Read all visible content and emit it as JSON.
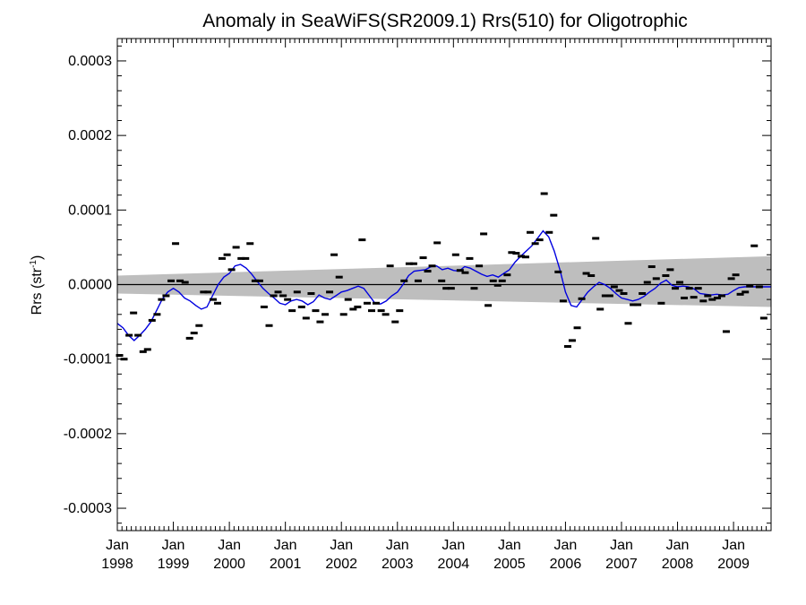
{
  "chart_data": {
    "type": "scatter",
    "title": "Anomaly in SeaWiFS(SR2009.1) Rrs(510) for Oligotrophic",
    "xlabel": "",
    "ylabel_main": "Rrs (str",
    "ylabel_sup": "-1",
    "ylabel_close": ")",
    "xlim": [
      1998.0,
      2009.67
    ],
    "ylim": [
      -0.00033,
      0.00033
    ],
    "yticks": [
      {
        "value": 0.0003,
        "label": "0.0003"
      },
      {
        "value": 0.0002,
        "label": "0.0002"
      },
      {
        "value": 0.0001,
        "label": "0.0001"
      },
      {
        "value": 0.0,
        "label": "0.0000"
      },
      {
        "value": -0.0001,
        "label": "-0.0001"
      },
      {
        "value": -0.0002,
        "label": "-0.0002"
      },
      {
        "value": -0.0003,
        "label": "-0.0003"
      }
    ],
    "xticks": [
      {
        "value": 1998,
        "month": "Jan",
        "year": "1998"
      },
      {
        "value": 1999,
        "month": "Jan",
        "year": "1999"
      },
      {
        "value": 2000,
        "month": "Jan",
        "year": "2000"
      },
      {
        "value": 2001,
        "month": "Jan",
        "year": "2001"
      },
      {
        "value": 2002,
        "month": "Jan",
        "year": "2002"
      },
      {
        "value": 2003,
        "month": "Jan",
        "year": "2003"
      },
      {
        "value": 2004,
        "month": "Jan",
        "year": "2004"
      },
      {
        "value": 2005,
        "month": "Jan",
        "year": "2005"
      },
      {
        "value": 2006,
        "month": "Jan",
        "year": "2006"
      },
      {
        "value": 2007,
        "month": "Jan",
        "year": "2007"
      },
      {
        "value": 2008,
        "month": "Jan",
        "year": "2008"
      },
      {
        "value": 2009,
        "month": "Jan",
        "year": "2009"
      }
    ],
    "zero_line": 0.0,
    "trend_band": {
      "x": [
        1998.0,
        2009.67
      ],
      "upper": [
        1.2e-05,
        3.8e-05
      ],
      "lower": [
        -1.2e-05,
        -3e-05
      ]
    },
    "anomaly_points": {
      "x": [
        1998.04,
        1998.12,
        1998.21,
        1998.29,
        1998.37,
        1998.46,
        1998.54,
        1998.62,
        1998.71,
        1998.79,
        1998.87,
        1998.96,
        1999.04,
        1999.12,
        1999.21,
        1999.29,
        1999.37,
        1999.46,
        1999.54,
        1999.62,
        1999.71,
        1999.79,
        1999.87,
        1999.96,
        2000.04,
        2000.12,
        2000.21,
        2000.29,
        2000.37,
        2000.46,
        2000.54,
        2000.62,
        2000.71,
        2000.79,
        2000.87,
        2000.96,
        2001.04,
        2001.12,
        2001.21,
        2001.29,
        2001.37,
        2001.46,
        2001.54,
        2001.62,
        2001.71,
        2001.79,
        2001.87,
        2001.96,
        2002.04,
        2002.12,
        2002.21,
        2002.29,
        2002.37,
        2002.46,
        2002.54,
        2002.62,
        2002.71,
        2002.79,
        2002.87,
        2002.96,
        2003.04,
        2003.12,
        2003.21,
        2003.29,
        2003.37,
        2003.46,
        2003.54,
        2003.62,
        2003.71,
        2003.79,
        2003.87,
        2003.96,
        2004.04,
        2004.12,
        2004.21,
        2004.29,
        2004.37,
        2004.46,
        2004.54,
        2004.62,
        2004.71,
        2004.79,
        2004.87,
        2004.96,
        2005.04,
        2005.12,
        2005.21,
        2005.29,
        2005.37,
        2005.46,
        2005.54,
        2005.62,
        2005.71,
        2005.79,
        2005.87,
        2005.96,
        2006.04,
        2006.12,
        2006.21,
        2006.29,
        2006.37,
        2006.46,
        2006.54,
        2006.62,
        2006.71,
        2006.79,
        2006.87,
        2006.96,
        2007.04,
        2007.12,
        2007.21,
        2007.29,
        2007.37,
        2007.46,
        2007.54,
        2007.62,
        2007.71,
        2007.79,
        2007.87,
        2007.96,
        2008.04,
        2008.12,
        2008.21,
        2008.29,
        2008.37,
        2008.46,
        2008.54,
        2008.62,
        2008.71,
        2008.79,
        2008.87,
        2008.96,
        2009.04,
        2009.12,
        2009.21,
        2009.29,
        2009.37,
        2009.46,
        2009.54
      ],
      "y": [
        -9.5e-05,
        -0.0001,
        -6.8e-05,
        -3.8e-05,
        -6.8e-05,
        -9e-05,
        -8.7e-05,
        -4.8e-05,
        -4e-05,
        -2e-05,
        -1.5e-05,
        5e-06,
        5.5e-05,
        5e-06,
        3e-06,
        -7.2e-05,
        -6.5e-05,
        -5.5e-05,
        -1e-05,
        -1e-05,
        -2e-05,
        -2.5e-05,
        3.5e-05,
        4e-05,
        2e-05,
        5e-05,
        3.5e-05,
        3.5e-05,
        5.5e-05,
        5e-06,
        5e-06,
        -3e-05,
        -5.5e-05,
        -1.5e-05,
        -1e-05,
        -1.5e-05,
        -2e-05,
        -3.5e-05,
        -1e-05,
        -3e-05,
        -4.5e-05,
        -1.2e-05,
        -3.5e-05,
        -5e-05,
        -4e-05,
        -1e-05,
        4e-05,
        1e-05,
        -4e-05,
        -2e-05,
        -3.3e-05,
        -3e-05,
        6e-05,
        -2.5e-05,
        -3.5e-05,
        -2.5e-05,
        -3.5e-05,
        -4e-05,
        2.5e-05,
        -5e-05,
        -3.5e-05,
        5e-06,
        2.8e-05,
        2.8e-05,
        5e-06,
        3.6e-05,
        1.8e-05,
        2.5e-05,
        5.6e-05,
        5e-06,
        -5e-06,
        -5e-06,
        4e-05,
        1.9e-05,
        1.6e-05,
        3.5e-05,
        -5e-06,
        2.5e-05,
        6.8e-05,
        -2.8e-05,
        5e-06,
        -1e-06,
        5e-06,
        1.3e-05,
        4.3e-05,
        4.2e-05,
        3.8e-05,
        3.7e-05,
        7e-05,
        5.5e-05,
        6e-05,
        0.000122,
        7e-05,
        9.3e-05,
        1.7e-05,
        -2.2e-05,
        -8.3e-05,
        -7.5e-05,
        -5.8e-05,
        -1.9e-05,
        1.5e-05,
        1.2e-05,
        6.2e-05,
        -3.3e-05,
        -1.5e-05,
        -1.5e-05,
        -3e-06,
        -8e-06,
        -1.2e-05,
        -5.2e-05,
        -2.7e-05,
        -2.7e-05,
        -1.2e-05,
        3e-06,
        2.4e-05,
        8e-06,
        -2.5e-05,
        1.2e-05,
        2e-05,
        -5e-06,
        3e-06,
        -1.8e-05,
        -5e-06,
        -1.7e-05,
        -5e-06,
        -2.2e-05,
        -1.5e-05,
        -2e-05,
        -1.8e-05,
        -1.5e-05,
        -6.3e-05,
        8e-06,
        1.3e-05,
        -1.3e-05,
        -1e-05,
        -2e-06,
        5.2e-05,
        -3e-06,
        -4.5e-05
      ]
    },
    "smoothed_line": {
      "x": [
        1998.0,
        1998.1,
        1998.2,
        1998.3,
        1998.4,
        1998.5,
        1998.6,
        1998.7,
        1998.8,
        1998.9,
        1999.0,
        1999.1,
        1999.2,
        1999.3,
        1999.4,
        1999.5,
        1999.6,
        1999.7,
        1999.8,
        1999.9,
        2000.0,
        2000.1,
        2000.2,
        2000.3,
        2000.4,
        2000.5,
        2000.6,
        2000.7,
        2000.8,
        2000.9,
        2001.0,
        2001.1,
        2001.2,
        2001.3,
        2001.4,
        2001.5,
        2001.6,
        2001.7,
        2001.8,
        2001.9,
        2002.0,
        2002.1,
        2002.2,
        2002.3,
        2002.4,
        2002.5,
        2002.6,
        2002.7,
        2002.8,
        2002.9,
        2003.0,
        2003.1,
        2003.2,
        2003.3,
        2003.4,
        2003.5,
        2003.6,
        2003.7,
        2003.8,
        2003.9,
        2004.0,
        2004.1,
        2004.2,
        2004.3,
        2004.4,
        2004.5,
        2004.6,
        2004.7,
        2004.8,
        2004.9,
        2005.0,
        2005.1,
        2005.2,
        2005.3,
        2005.4,
        2005.5,
        2005.6,
        2005.7,
        2005.8,
        2005.9,
        2006.0,
        2006.1,
        2006.2,
        2006.3,
        2006.4,
        2006.5,
        2006.6,
        2006.7,
        2006.8,
        2006.9,
        2007.0,
        2007.1,
        2007.2,
        2007.3,
        2007.4,
        2007.5,
        2007.6,
        2007.7,
        2007.8,
        2007.9,
        2008.0,
        2008.1,
        2008.2,
        2008.3,
        2008.4,
        2008.5,
        2008.6,
        2008.7,
        2008.8,
        2008.9,
        2009.0,
        2009.1,
        2009.2,
        2009.3,
        2009.4,
        2009.5,
        2009.6,
        2009.67
      ],
      "y": [
        -5.2e-05,
        -5.8e-05,
        -6.8e-05,
        -7.5e-05,
        -6.8e-05,
        -6e-05,
        -5e-05,
        -3.5e-05,
        -2e-05,
        -1e-05,
        -5e-06,
        -1e-05,
        -1.8e-05,
        -2.2e-05,
        -2.8e-05,
        -3.3e-05,
        -3e-05,
        -1.5e-05,
        0.0,
        1e-05,
        1.5e-05,
        2.5e-05,
        2.7e-05,
        2.2e-05,
        1.4e-05,
        4e-06,
        -5e-06,
        -1.2e-05,
        -1.8e-05,
        -2.5e-05,
        -2.7e-05,
        -2.2e-05,
        -2e-05,
        -2.2e-05,
        -2.7e-05,
        -2.3e-05,
        -1.4e-05,
        -1.8e-05,
        -2e-05,
        -1.5e-05,
        -1e-05,
        -8e-06,
        -5e-06,
        -2e-06,
        -5e-06,
        -1.5e-05,
        -2.5e-05,
        -2.6e-05,
        -2.2e-05,
        -1.5e-05,
        -1e-05,
        0.0,
        1.2e-05,
        1.8e-05,
        1.9e-05,
        2e-05,
        2.4e-05,
        2.5e-05,
        2e-05,
        2.2e-05,
        1.9e-05,
        1.8e-05,
        2.4e-05,
        2.2e-05,
        1.8e-05,
        1.4e-05,
        1.1e-05,
        1.3e-05,
        1e-05,
        1.5e-05,
        2e-05,
        3e-05,
        3.8e-05,
        4.5e-05,
        5.2e-05,
        6.2e-05,
        7.2e-05,
        6.4e-05,
        4.5e-05,
        2e-05,
        -1e-05,
        -2.8e-05,
        -3e-05,
        -2e-05,
        -1e-05,
        -3e-06,
        3e-06,
        0.0,
        -5e-06,
        -1.2e-05,
        -1.8e-05,
        -2e-05,
        -2.2e-05,
        -2e-05,
        -1.6e-05,
        -1e-05,
        -5e-06,
        2e-06,
        6e-06,
        -1e-06,
        -3e-06,
        -2e-06,
        -3e-06,
        -6e-06,
        -1.2e-05,
        -1.3e-05,
        -1.4e-05,
        -1.3e-05,
        -1.4e-05,
        -1.3e-05,
        -8e-06,
        -4e-06,
        -3e-06,
        -3e-06,
        -3e-06,
        -3e-06,
        -3e-06,
        -3e-06
      ]
    },
    "colors": {
      "band": "#bebebe",
      "line": "#0000e0",
      "points": "#000000",
      "axes": "#000000"
    },
    "grid": false,
    "legend": "none"
  }
}
